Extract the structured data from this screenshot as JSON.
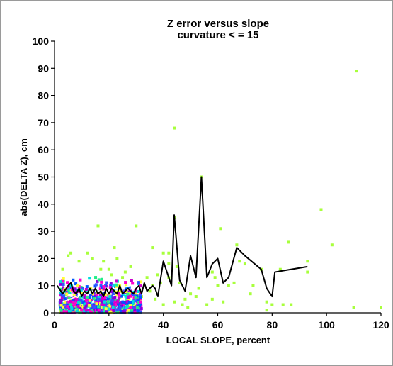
{
  "chart_data": {
    "type": "scatter",
    "title": "Z error versus slope",
    "subtitle": "curvature < = 15",
    "xlabel": "LOCAL SLOPE, percent",
    "ylabel": "abs(DELTA Z), cm",
    "xlim": [
      0,
      120
    ],
    "ylim": [
      0,
      100
    ],
    "xticks": [
      0,
      20,
      40,
      60,
      80,
      100,
      120
    ],
    "yticks": [
      0,
      10,
      20,
      30,
      40,
      50,
      60,
      70,
      80,
      90,
      100
    ],
    "grid": false,
    "legend": "none",
    "colors": {
      "sparse_points": "#a8ff3c",
      "dense_cluster": [
        "#22ee88",
        "#00dddd",
        "#3355ff",
        "#8800dd",
        "#ff00cc",
        "#cc00cc",
        "#0055ff",
        "#ffff33"
      ],
      "mean_line": "#000000",
      "cluster_trend_line": "#ffffff"
    },
    "series": [
      {
        "kind": "scatter",
        "points": [
          [
            111,
            89
          ],
          [
            44,
            68
          ],
          [
            54,
            50
          ],
          [
            98,
            38
          ],
          [
            44,
            35
          ],
          [
            61,
            31
          ],
          [
            30,
            32
          ],
          [
            16,
            32
          ],
          [
            102,
            25
          ],
          [
            67,
            25
          ],
          [
            86,
            26
          ],
          [
            22,
            24
          ],
          [
            40,
            22
          ],
          [
            42,
            22
          ],
          [
            36,
            24
          ],
          [
            93,
            19
          ],
          [
            93,
            15
          ],
          [
            76,
            16
          ],
          [
            58,
            15
          ],
          [
            73,
            10
          ],
          [
            72,
            7
          ],
          [
            78,
            4
          ],
          [
            78,
            1
          ],
          [
            80,
            3
          ],
          [
            83,
            16
          ],
          [
            84,
            3
          ],
          [
            87,
            3
          ],
          [
            110,
            2
          ],
          [
            120,
            2
          ],
          [
            48,
            5
          ],
          [
            50,
            7
          ],
          [
            52,
            6
          ],
          [
            56,
            3
          ],
          [
            60,
            10
          ],
          [
            64,
            10
          ],
          [
            66,
            11
          ],
          [
            68,
            19
          ],
          [
            42,
            13
          ],
          [
            45,
            17
          ],
          [
            46,
            11
          ],
          [
            38,
            14
          ],
          [
            39,
            11
          ],
          [
            36,
            10
          ],
          [
            44,
            4
          ],
          [
            47,
            3
          ],
          [
            49,
            2
          ],
          [
            53,
            9
          ],
          [
            34,
            13
          ],
          [
            32,
            6
          ],
          [
            28,
            17
          ],
          [
            26,
            15
          ],
          [
            24,
            9
          ],
          [
            31,
            10
          ],
          [
            29,
            4
          ],
          [
            27,
            2
          ],
          [
            25,
            13
          ],
          [
            20,
            16
          ],
          [
            18,
            19
          ],
          [
            14,
            20
          ],
          [
            9,
            19
          ],
          [
            6,
            22
          ],
          [
            5,
            21
          ],
          [
            3,
            16
          ],
          [
            12,
            22
          ],
          [
            35,
            8
          ],
          [
            37,
            5
          ],
          [
            40,
            3
          ],
          [
            42,
            18
          ],
          [
            58,
            5
          ],
          [
            62,
            4
          ],
          [
            59,
            13
          ],
          [
            70,
            18
          ],
          [
            21,
            14
          ],
          [
            23,
            20
          ],
          [
            17,
            16
          ]
        ]
      },
      {
        "kind": "mean_line",
        "points": [
          [
            1,
            10
          ],
          [
            3,
            7
          ],
          [
            5,
            10
          ],
          [
            6,
            11
          ],
          [
            7,
            8
          ],
          [
            8,
            7
          ],
          [
            9,
            9
          ],
          [
            10,
            6
          ],
          [
            11,
            8
          ],
          [
            12,
            7
          ],
          [
            13,
            9
          ],
          [
            14,
            7
          ],
          [
            15,
            9
          ],
          [
            16,
            7
          ],
          [
            17,
            8
          ],
          [
            18,
            6
          ],
          [
            19,
            9
          ],
          [
            20,
            7
          ],
          [
            21,
            9
          ],
          [
            22,
            8
          ],
          [
            23,
            7
          ],
          [
            24,
            10
          ],
          [
            25,
            7
          ],
          [
            26,
            8
          ],
          [
            27,
            9
          ],
          [
            28,
            8
          ],
          [
            29,
            7
          ],
          [
            30,
            9
          ],
          [
            31,
            10
          ],
          [
            32,
            7
          ],
          [
            33,
            11
          ],
          [
            34,
            8
          ],
          [
            35,
            9
          ],
          [
            36,
            10
          ],
          [
            37,
            9
          ],
          [
            38,
            6
          ],
          [
            40,
            19
          ],
          [
            42,
            13
          ],
          [
            43,
            10
          ],
          [
            44,
            36
          ],
          [
            46,
            12
          ],
          [
            48,
            8
          ],
          [
            50,
            21
          ],
          [
            52,
            13
          ],
          [
            54,
            50
          ],
          [
            56,
            13
          ],
          [
            58,
            18
          ],
          [
            60,
            20
          ],
          [
            62,
            11
          ],
          [
            64,
            13
          ],
          [
            67,
            24
          ],
          [
            70,
            21
          ],
          [
            76,
            16
          ],
          [
            78,
            9
          ],
          [
            80,
            6
          ],
          [
            81,
            15
          ],
          [
            93,
            17
          ]
        ]
      },
      {
        "kind": "cluster_trend_line",
        "points": [
          [
            3,
            4
          ],
          [
            8,
            6
          ],
          [
            13,
            8
          ],
          [
            18,
            8
          ],
          [
            23,
            9
          ],
          [
            28,
            10
          ],
          [
            31,
            10
          ]
        ]
      }
    ]
  }
}
